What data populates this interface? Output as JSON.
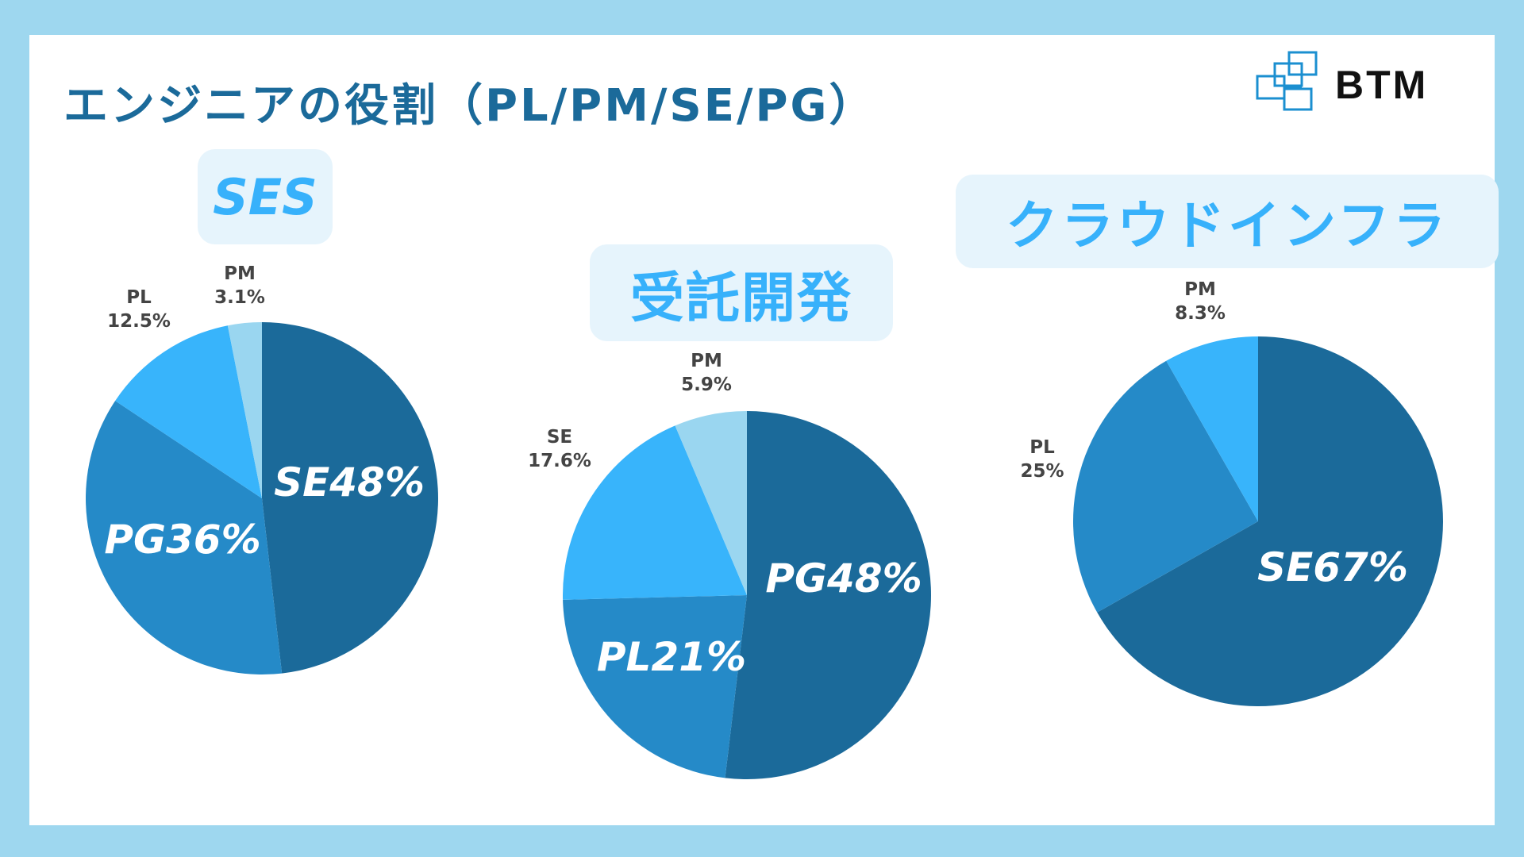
{
  "page": {
    "title": "エンジニアの役割（PL/PM/SE/PG）",
    "logo_text": "BTM"
  },
  "colors": {
    "dark": "#1b6a9a",
    "mid": "#258ac8",
    "light": "#38b4fb",
    "pale": "#9ad6f0",
    "background": "#9ed7ef"
  },
  "chart_data": [
    {
      "type": "pie",
      "title": "SES",
      "slices": [
        {
          "label": "SE",
          "value": 48,
          "display": "SE48%",
          "color": "#1b6a9a",
          "label_position": "inside"
        },
        {
          "label": "PG",
          "value": 36,
          "display": "PG36%",
          "color": "#258ac8",
          "label_position": "inside"
        },
        {
          "label": "PL",
          "value": 12.5,
          "display": "12.5%",
          "color": "#38b4fb",
          "label_position": "outside"
        },
        {
          "label": "PM",
          "value": 3.1,
          "display": "3.1%",
          "color": "#9ad6f0",
          "label_position": "outside"
        }
      ]
    },
    {
      "type": "pie",
      "title": "受託開発",
      "slices": [
        {
          "label": "PG",
          "value": 48,
          "display": "PG48%",
          "color": "#1b6a9a",
          "label_position": "inside"
        },
        {
          "label": "PL",
          "value": 21,
          "display": "PL21%",
          "color": "#258ac8",
          "label_position": "inside"
        },
        {
          "label": "SE",
          "value": 17.6,
          "display": "17.6%",
          "color": "#38b4fb",
          "label_position": "outside"
        },
        {
          "label": "PM",
          "value": 5.9,
          "display": "5.9%",
          "color": "#9ad6f0",
          "label_position": "outside"
        }
      ]
    },
    {
      "type": "pie",
      "title": "クラウドインフラ",
      "slices": [
        {
          "label": "SE",
          "value": 67,
          "display": "SE67%",
          "color": "#1b6a9a",
          "label_position": "inside"
        },
        {
          "label": "PL",
          "value": 25,
          "display": "25%",
          "color": "#258ac8",
          "label_position": "outside"
        },
        {
          "label": "PM",
          "value": 8.3,
          "display": "8.3%",
          "color": "#38b4fb",
          "label_position": "outside"
        }
      ]
    }
  ]
}
